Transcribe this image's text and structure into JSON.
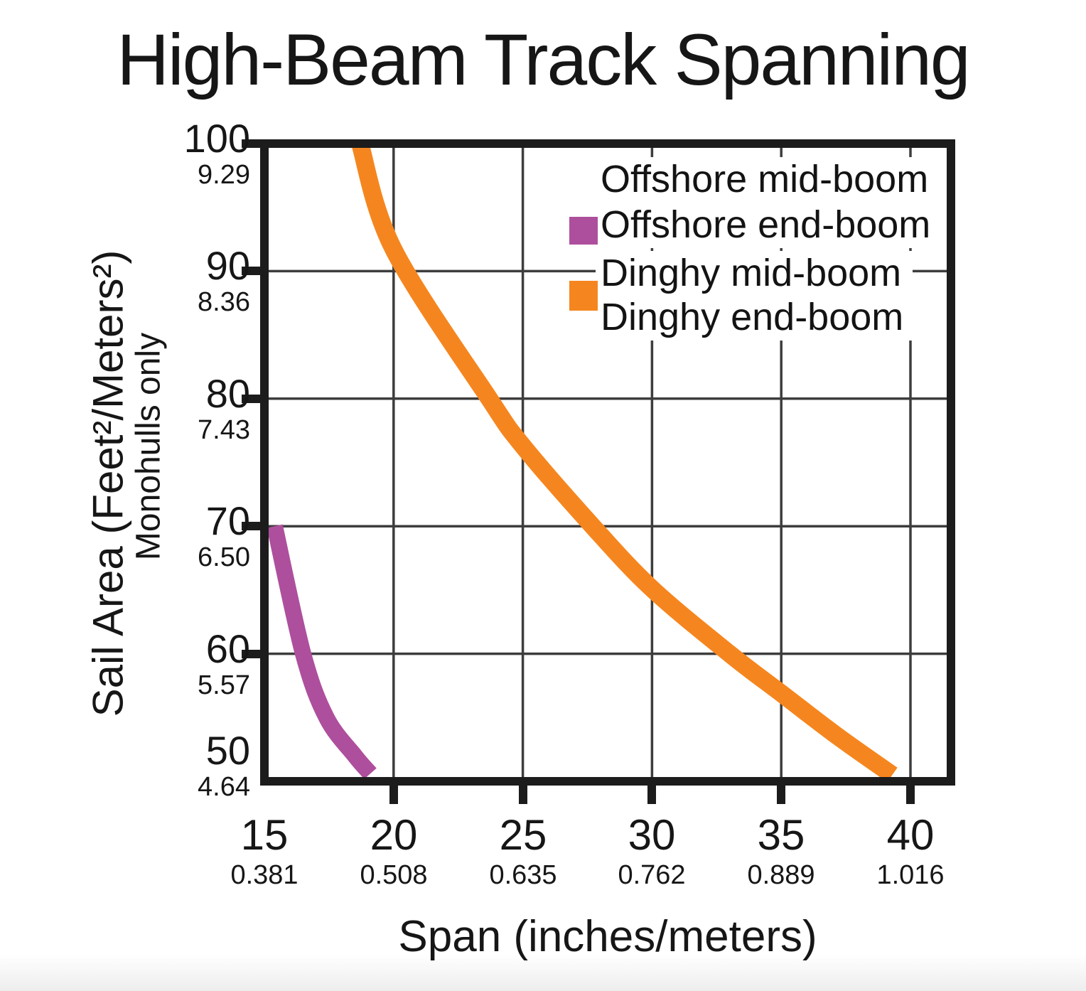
{
  "title": "High-Beam Track Spanning",
  "colors": {
    "offshore": "#AE4F9D",
    "dinghy": "#F5861F",
    "grid": "#3d3d3d",
    "frame": "#1c1c1c",
    "text": "#161616",
    "background": "#ffffff"
  },
  "legend": {
    "items": [
      {
        "label": "Offshore mid-boom",
        "swatch": null
      },
      {
        "label": "Offshore end-boom",
        "swatch": "offshore"
      },
      {
        "label": "Dinghy mid-boom",
        "swatch": null
      },
      {
        "label": "Dinghy end-boom",
        "swatch": "dinghy"
      }
    ]
  },
  "y_axis": {
    "title": "Sail Area (Feet²/Meters²)",
    "subtitle": "Monohulls only",
    "ticks": [
      {
        "feet": "100",
        "meters": "9.29"
      },
      {
        "feet": "90",
        "meters": "8.36"
      },
      {
        "feet": "80",
        "meters": "7.43"
      },
      {
        "feet": "70",
        "meters": "6.50"
      },
      {
        "feet": "60",
        "meters": "5.57"
      },
      {
        "feet": "50",
        "meters": "4.64"
      }
    ]
  },
  "x_axis": {
    "title": "Span (inches/meters)",
    "ticks": [
      {
        "inches": "15",
        "meters": "0.381"
      },
      {
        "inches": "20",
        "meters": "0.508"
      },
      {
        "inches": "25",
        "meters": "0.635"
      },
      {
        "inches": "30",
        "meters": "0.762"
      },
      {
        "inches": "35",
        "meters": "0.889"
      },
      {
        "inches": "40",
        "meters": "1.016"
      }
    ]
  },
  "chart_data": {
    "type": "line",
    "title": "High-Beam Track Spanning",
    "xlabel": "Span (inches/meters)",
    "ylabel": "Sail Area (Feet²/Meters²)",
    "ylabel_note": "Monohulls only",
    "xlim": [
      15,
      41.6
    ],
    "ylim": [
      50,
      100
    ],
    "x_tick_values": [
      15,
      20,
      25,
      30,
      35,
      40
    ],
    "x_tick_values_meters": [
      0.381,
      0.508,
      0.635,
      0.762,
      0.889,
      1.016
    ],
    "y_tick_values": [
      100,
      90,
      80,
      70,
      60,
      50
    ],
    "y_tick_values_meters": [
      9.29,
      8.36,
      7.43,
      6.5,
      5.57,
      4.64
    ],
    "grid": true,
    "legend_position": "top-right",
    "series": [
      {
        "name": "Offshore (mid-boom / end-boom)",
        "color_key": "offshore",
        "stroke_width": 23,
        "points": [
          [
            15.4,
            70
          ],
          [
            16.5,
            60
          ],
          [
            17.4,
            55
          ],
          [
            18.5,
            52
          ],
          [
            19.1,
            50.6
          ]
        ]
      },
      {
        "name": "Dinghy (mid-boom / end-boom)",
        "color_key": "dinghy",
        "stroke_width": 25,
        "points": [
          [
            18.7,
            100
          ],
          [
            20,
            91.7
          ],
          [
            23.7,
            80
          ],
          [
            25,
            76.3
          ],
          [
            27.7,
            70
          ],
          [
            30,
            65.1
          ],
          [
            33,
            60
          ],
          [
            35,
            56.9
          ],
          [
            37.2,
            53.5
          ],
          [
            39.3,
            50.5
          ]
        ]
      }
    ]
  }
}
